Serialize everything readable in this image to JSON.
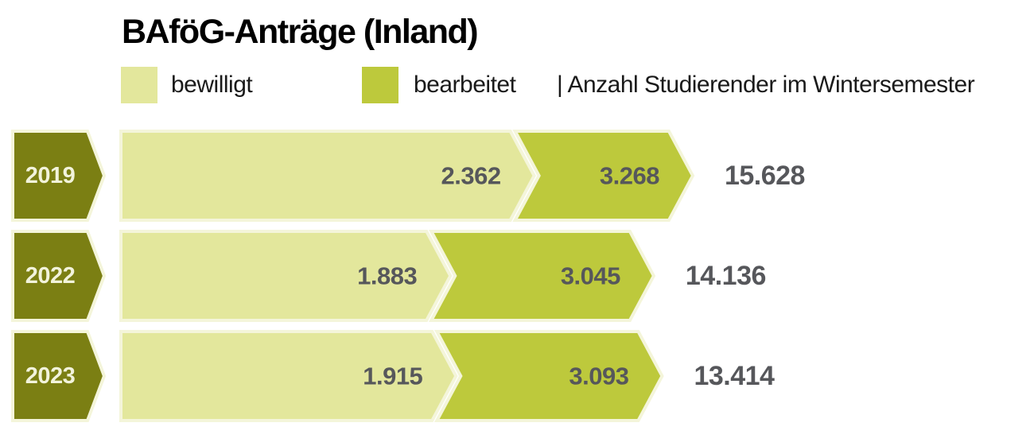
{
  "title": "BAföG-Anträge (Inland)",
  "legend": {
    "bewilligt_label": "bewilligt",
    "bearbeitet_label": "bearbeitet",
    "annotation": "| Anzahl Studierender im Wintersemester"
  },
  "colors": {
    "bewilligt": "#e3e79c",
    "bearbeitet": "#bdc93c",
    "year_badge": "#7b7f13",
    "outline": "#f4f5da",
    "value_text": "#56575b",
    "year_text": "#f2f3db"
  },
  "chart_data": {
    "type": "bar",
    "orientation": "horizontal",
    "title": "BAföG-Anträge (Inland)",
    "categories": [
      "2019",
      "2022",
      "2023"
    ],
    "series": [
      {
        "name": "bewilligt",
        "values": [
          2362,
          1883,
          1915
        ]
      },
      {
        "name": "bearbeitet",
        "values": [
          3268,
          3045,
          3093
        ]
      },
      {
        "name": "Anzahl Studierender im Wintersemester",
        "values": [
          15628,
          14136,
          13414
        ]
      }
    ],
    "legend_position": "top",
    "grid": false,
    "note": "Arrow bar total length is proportional to bearbeitet; the pale inner segment is bewilligt. Number right of each bar is students enrolled in winter semester.",
    "rows": [
      {
        "year": "2019",
        "bewilligt": 2362,
        "bewilligt_label": "2.362",
        "bearbeitet": 3268,
        "bearbeitet_label": "3.268",
        "studierende": 15628,
        "studierende_label": "15.628"
      },
      {
        "year": "2022",
        "bewilligt": 1883,
        "bewilligt_label": "1.883",
        "bearbeitet": 3045,
        "bearbeitet_label": "3.045",
        "studierende": 14136,
        "studierende_label": "14.136"
      },
      {
        "year": "2023",
        "bewilligt": 1915,
        "bewilligt_label": "1.915",
        "bearbeitet": 3093,
        "bearbeitet_label": "3.093",
        "studierende": 13414,
        "studierende_label": "13.414"
      }
    ]
  }
}
